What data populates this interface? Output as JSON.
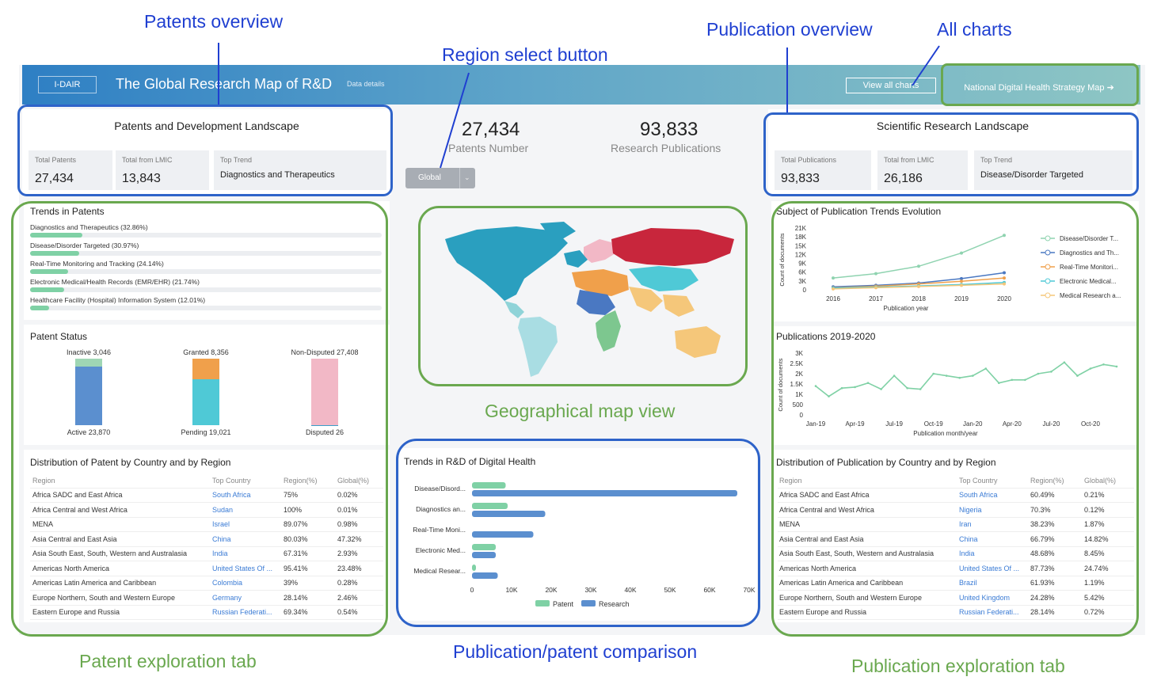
{
  "annotations": {
    "patents_overview": "Patents overview",
    "region_select_button": "Region select button",
    "publication_overview": "Publication overview",
    "all_charts": "All charts",
    "geographical_map_view": "Geographical map view",
    "patent_exploration_tab": "Patent exploration tab",
    "publication_patent_comparison": "Publication/patent comparison",
    "publication_exploration_tab": "Publication exploration tab"
  },
  "header": {
    "logo": "I-DAIR",
    "title": "The Global Research Map of R&D",
    "data_details": "Data details",
    "view_all_charts": "View all charts",
    "national_strategy": "National Digital Health Strategy Map ➔"
  },
  "patents_landscape": {
    "title": "Patents and Development Landscape",
    "kpis": [
      {
        "label": "Total Patents",
        "value": "27,434"
      },
      {
        "label": "Total from LMIC",
        "value": "13,843"
      },
      {
        "label": "Top Trend",
        "value": "Diagnostics and Therapeutics"
      }
    ]
  },
  "center_stats": {
    "patents_number": "27,434",
    "patents_label": "Patents Number",
    "publications_number": "93,833",
    "publications_label": "Research Publications",
    "region_select": "Global"
  },
  "research_landscape": {
    "title": "Scientific Research Landscape",
    "kpis": [
      {
        "label": "Total Publications",
        "value": "93,833"
      },
      {
        "label": "Total from LMIC",
        "value": "26,186"
      },
      {
        "label": "Top Trend",
        "value": "Disease/Disorder Targeted"
      }
    ]
  },
  "trends_in_patents": {
    "title": "Trends in Patents",
    "items": [
      {
        "label": "Diagnostics and Therapeutics (32.86%)",
        "pct": 32.86
      },
      {
        "label": "Disease/Disorder Targeted (30.97%)",
        "pct": 30.97
      },
      {
        "label": "Real-Time Monitoring and Tracking (24.14%)",
        "pct": 24.14
      },
      {
        "label": "Electronic Medical/Health Records (EMR/EHR) (21.74%)",
        "pct": 21.74
      },
      {
        "label": "Healthcare Facility (Hospital) Information System (12.01%)",
        "pct": 12.01
      }
    ]
  },
  "patent_status": {
    "title": "Patent Status",
    "bars": [
      {
        "top_label": "Inactive 3,046",
        "bottom_label": "Active 23,870",
        "top_value": 3046,
        "bottom_value": 23870,
        "top_color": "#9fd6b4",
        "bottom_color": "#5b8fcf"
      },
      {
        "top_label": "Granted 8,356",
        "bottom_label": "Pending 19,021",
        "top_value": 8356,
        "bottom_value": 19021,
        "top_color": "#f0a04b",
        "bottom_color": "#4fc9d6"
      },
      {
        "top_label": "Non-Disputed 27,408",
        "bottom_label": "Disputed 26",
        "top_value": 27408,
        "bottom_value": 26,
        "top_color": "#f2b8c6",
        "bottom_color": "#3b9ec9"
      }
    ]
  },
  "patent_distribution": {
    "title": "Distribution of Patent by Country and by Region",
    "headers": [
      "Region",
      "Top Country",
      "Region(%)",
      "Global(%)"
    ],
    "rows": [
      [
        "Africa SADC and East Africa",
        "South Africa",
        "75%",
        "0.02%"
      ],
      [
        "Africa Central and West Africa",
        "Sudan",
        "100%",
        "0.01%"
      ],
      [
        "MENA",
        "Israel",
        "89.07%",
        "0.98%"
      ],
      [
        "Asia Central and East Asia",
        "China",
        "80.03%",
        "47.32%"
      ],
      [
        "Asia South East, South, Western and Australasia",
        "India",
        "67.31%",
        "2.93%"
      ],
      [
        "Americas North America",
        "United States Of ...",
        "95.41%",
        "23.48%"
      ],
      [
        "Americas Latin America and Caribbean",
        "Colombia",
        "39%",
        "0.28%"
      ],
      [
        "Europe Northern, South and Western Europe",
        "Germany",
        "28.14%",
        "2.46%"
      ],
      [
        "Eastern Europe and Russia",
        "Russian Federati...",
        "69.34%",
        "0.54%"
      ]
    ]
  },
  "trends_rd": {
    "title": "Trends in R&D of Digital Health",
    "categories": [
      "Disease/Disord...",
      "Diagnostics an...",
      "Real-Time Moni...",
      "Electronic Med...",
      "Medical Resear..."
    ],
    "ticks": [
      "0",
      "10K",
      "20K",
      "30K",
      "40K",
      "50K",
      "60K",
      "70K"
    ],
    "legend_patent": "Patent",
    "legend_research": "Research"
  },
  "subject_trends": {
    "title": "Subject of Publication Trends Evolution",
    "y_ticks": [
      "21K",
      "18K",
      "15K",
      "12K",
      "9K",
      "6K",
      "3K",
      "0"
    ],
    "x_ticks": [
      "2016",
      "2017",
      "2018",
      "2019",
      "2020"
    ],
    "ylabel": "Count of documents",
    "xlabel": "Publication year",
    "legend": [
      "Disease/Disorder T...",
      "Diagnostics and Th...",
      "Real-Time Monitori...",
      "Electronic Medical...",
      "Medical Research a..."
    ]
  },
  "publications_2019_2020": {
    "title": "Publications 2019-2020",
    "y_ticks": [
      "3K",
      "2.5K",
      "2K",
      "1.5K",
      "1K",
      "500",
      "0"
    ],
    "x_ticks": [
      "Jan-19",
      "Apr-19",
      "Jul-19",
      "Oct-19",
      "Jan-20",
      "Apr-20",
      "Jul-20",
      "Oct-20"
    ],
    "ylabel": "Count of documents",
    "xlabel": "Publication month/year"
  },
  "publication_distribution": {
    "title": "Distribution of Publication by Country and by Region",
    "headers": [
      "Region",
      "Top Country",
      "Region(%)",
      "Global(%)"
    ],
    "rows": [
      [
        "Africa SADC and East Africa",
        "South Africa",
        "60.49%",
        "0.21%"
      ],
      [
        "Africa Central and West Africa",
        "Nigeria",
        "70.3%",
        "0.12%"
      ],
      [
        "MENA",
        "Iran",
        "38.23%",
        "1.87%"
      ],
      [
        "Asia Central and East Asia",
        "China",
        "66.79%",
        "14.82%"
      ],
      [
        "Asia South East, South, Western and Australasia",
        "India",
        "48.68%",
        "8.45%"
      ],
      [
        "Americas North America",
        "United States Of ...",
        "87.73%",
        "24.74%"
      ],
      [
        "Americas Latin America and Caribbean",
        "Brazil",
        "61.93%",
        "1.19%"
      ],
      [
        "Europe Northern, South and Western Europe",
        "United Kingdom",
        "24.28%",
        "5.42%"
      ],
      [
        "Eastern Europe and Russia",
        "Russian Federati...",
        "28.14%",
        "0.72%"
      ]
    ]
  },
  "chart_data": [
    {
      "type": "bar",
      "title": "Trends in R&D of Digital Health",
      "orientation": "horizontal",
      "categories": [
        "Disease/Disord...",
        "Diagnostics an...",
        "Real-Time Moni...",
        "Electronic Med...",
        "Medical Resear..."
      ],
      "series": [
        {
          "name": "Patent",
          "values": [
            8500,
            9000,
            0,
            6000,
            1000
          ],
          "color": "#7fd1a5"
        },
        {
          "name": "Research",
          "values": [
            67000,
            18500,
            15500,
            6000,
            6500
          ],
          "color": "#5b8fcf"
        }
      ],
      "xlim": [
        0,
        70000
      ]
    },
    {
      "type": "line",
      "title": "Subject of Publication Trends Evolution",
      "x": [
        2016,
        2017,
        2018,
        2019,
        2020
      ],
      "series": [
        {
          "name": "Disease/Disorder T...",
          "values": [
            4000,
            5500,
            8000,
            12500,
            18500
          ],
          "color": "#8fd3b0"
        },
        {
          "name": "Diagnostics and Th...",
          "values": [
            1000,
            1500,
            2300,
            3800,
            5800
          ],
          "color": "#4a78c2"
        },
        {
          "name": "Real-Time Monitori...",
          "values": [
            700,
            1200,
            2000,
            2900,
            4000
          ],
          "color": "#f0a04b"
        },
        {
          "name": "Electronic Medical...",
          "values": [
            600,
            900,
            1300,
            1800,
            2500
          ],
          "color": "#4fc9d6"
        },
        {
          "name": "Medical Research a...",
          "values": [
            300,
            700,
            1100,
            1500,
            2000
          ],
          "color": "#f5c77a"
        }
      ],
      "xlabel": "Publication year",
      "ylabel": "Count of documents",
      "ylim": [
        0,
        21000
      ]
    },
    {
      "type": "line",
      "title": "Publications 2019-2020",
      "x": [
        "Jan-19",
        "Feb-19",
        "Mar-19",
        "Apr-19",
        "May-19",
        "Jun-19",
        "Jul-19",
        "Aug-19",
        "Sep-19",
        "Oct-19",
        "Nov-19",
        "Dec-19",
        "Jan-20",
        "Feb-20",
        "Mar-20",
        "Apr-20",
        "May-20",
        "Jun-20",
        "Jul-20",
        "Aug-20",
        "Sep-20",
        "Oct-20",
        "Nov-20",
        "Dec-20"
      ],
      "series": [
        {
          "name": "Publications",
          "values": [
            1400,
            900,
            1300,
            1350,
            1550,
            1250,
            1900,
            1300,
            1250,
            2000,
            1900,
            1800,
            1900,
            2250,
            1550,
            1700,
            1700,
            2000,
            2100,
            2550,
            1900,
            2250,
            2450,
            2350
          ],
          "color": "#7fd1a5"
        }
      ],
      "xlabel": "Publication month/year",
      "ylabel": "Count of documents",
      "ylim": [
        0,
        3000
      ]
    }
  ]
}
